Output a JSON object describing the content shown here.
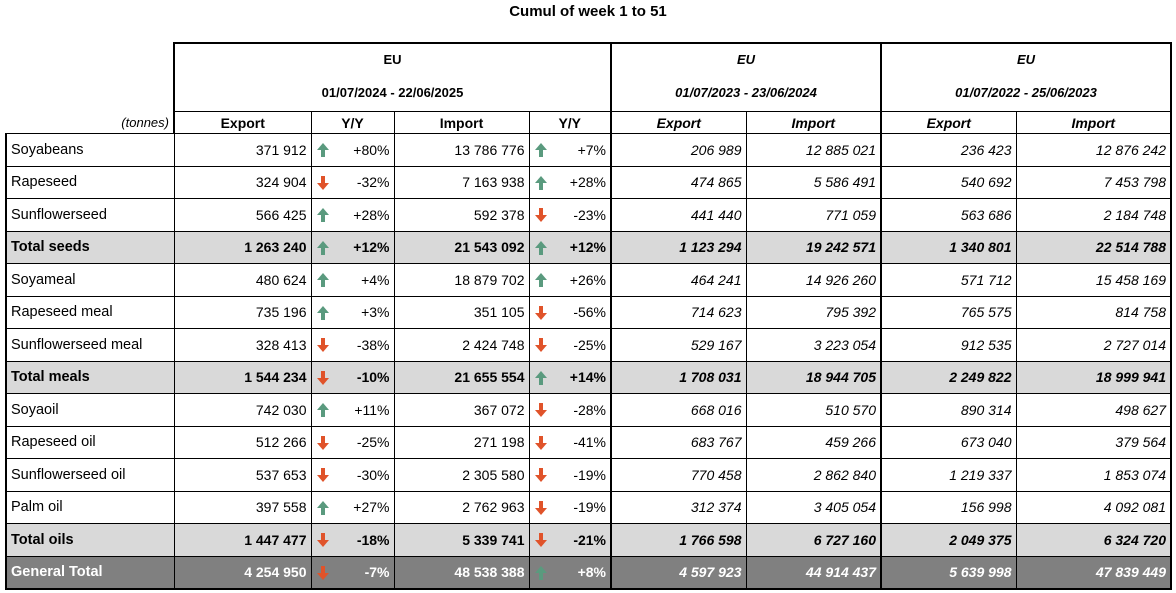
{
  "title": "Cumul of week 1 to 51",
  "units": "(tonnes)",
  "groups": [
    {
      "region": "EU",
      "period": "01/07/2024 - 22/06/2025"
    },
    {
      "region": "EU",
      "period": "01/07/2023 - 23/06/2024"
    },
    {
      "region": "EU",
      "period": "01/07/2022 - 25/06/2023"
    }
  ],
  "columns": {
    "export": "Export",
    "yy": "Y/Y",
    "import": "Import"
  },
  "colors": {
    "up": "#5a9a7e",
    "down": "#e0532a",
    "total_bg": "#d9d9d9",
    "general_bg": "#808080"
  },
  "rows": [
    {
      "label": "Soyabeans",
      "type": "item",
      "exp": "371 912",
      "exp_dir": "up",
      "exp_yy": "+80%",
      "imp": "13 786 776",
      "imp_dir": "up",
      "imp_yy": "+7%",
      "exp2": "206 989",
      "imp2": "12 885 021",
      "exp3": "236 423",
      "imp3": "12 876 242"
    },
    {
      "label": "Rapeseed",
      "type": "item",
      "exp": "324 904",
      "exp_dir": "down",
      "exp_yy": "-32%",
      "imp": "7 163 938",
      "imp_dir": "up",
      "imp_yy": "+28%",
      "exp2": "474 865",
      "imp2": "5 586 491",
      "exp3": "540 692",
      "imp3": "7 453 798"
    },
    {
      "label": "Sunflowerseed",
      "type": "item",
      "exp": "566 425",
      "exp_dir": "up",
      "exp_yy": "+28%",
      "imp": "592 378",
      "imp_dir": "down",
      "imp_yy": "-23%",
      "exp2": "441 440",
      "imp2": "771 059",
      "exp3": "563 686",
      "imp3": "2 184 748"
    },
    {
      "label": "Total seeds",
      "type": "total",
      "exp": "1 263 240",
      "exp_dir": "up",
      "exp_yy": "+12%",
      "imp": "21 543 092",
      "imp_dir": "up",
      "imp_yy": "+12%",
      "exp2": "1 123 294",
      "imp2": "19 242 571",
      "exp3": "1 340 801",
      "imp3": "22 514 788"
    },
    {
      "label": "Soyameal",
      "type": "item",
      "exp": "480 624",
      "exp_dir": "up",
      "exp_yy": "+4%",
      "imp": "18 879 702",
      "imp_dir": "up",
      "imp_yy": "+26%",
      "exp2": "464 241",
      "imp2": "14 926 260",
      "exp3": "571 712",
      "imp3": "15 458 169"
    },
    {
      "label": "Rapeseed meal",
      "type": "item",
      "exp": "735 196",
      "exp_dir": "up",
      "exp_yy": "+3%",
      "imp": "351 105",
      "imp_dir": "down",
      "imp_yy": "-56%",
      "exp2": "714 623",
      "imp2": "795 392",
      "exp3": "765 575",
      "imp3": "814 758"
    },
    {
      "label": "Sunflowerseed meal",
      "type": "item",
      "exp": "328 413",
      "exp_dir": "down",
      "exp_yy": "-38%",
      "imp": "2 424 748",
      "imp_dir": "down",
      "imp_yy": "-25%",
      "exp2": "529 167",
      "imp2": "3 223 054",
      "exp3": "912 535",
      "imp3": "2 727 014"
    },
    {
      "label": "Total meals",
      "type": "total",
      "exp": "1 544 234",
      "exp_dir": "down",
      "exp_yy": "-10%",
      "imp": "21 655 554",
      "imp_dir": "up",
      "imp_yy": "+14%",
      "exp2": "1 708 031",
      "imp2": "18 944 705",
      "exp3": "2 249 822",
      "imp3": "18 999 941"
    },
    {
      "label": "Soyaoil",
      "type": "item",
      "exp": "742 030",
      "exp_dir": "up",
      "exp_yy": "+11%",
      "imp": "367 072",
      "imp_dir": "down",
      "imp_yy": "-28%",
      "exp2": "668 016",
      "imp2": "510 570",
      "exp3": "890 314",
      "imp3": "498 627"
    },
    {
      "label": "Rapeseed oil",
      "type": "item",
      "exp": "512 266",
      "exp_dir": "down",
      "exp_yy": "-25%",
      "imp": "271 198",
      "imp_dir": "down",
      "imp_yy": "-41%",
      "exp2": "683 767",
      "imp2": "459 266",
      "exp3": "673 040",
      "imp3": "379 564"
    },
    {
      "label": "Sunflowerseed oil",
      "type": "item",
      "exp": "537 653",
      "exp_dir": "down",
      "exp_yy": "-30%",
      "imp": "2 305 580",
      "imp_dir": "down",
      "imp_yy": "-19%",
      "exp2": "770 458",
      "imp2": "2 862 840",
      "exp3": "1 219 337",
      "imp3": "1 853 074"
    },
    {
      "label": "Palm oil",
      "type": "item",
      "exp": "397 558",
      "exp_dir": "up",
      "exp_yy": "+27%",
      "imp": "2 762 963",
      "imp_dir": "down",
      "imp_yy": "-19%",
      "exp2": "312 374",
      "imp2": "3 405 054",
      "exp3": "156 998",
      "imp3": "4 092 081"
    },
    {
      "label": "Total oils",
      "type": "total",
      "exp": "1 447 477",
      "exp_dir": "down",
      "exp_yy": "-18%",
      "imp": "5 339 741",
      "imp_dir": "down",
      "imp_yy": "-21%",
      "exp2": "1 766 598",
      "imp2": "6 727 160",
      "exp3": "2 049 375",
      "imp3": "6 324 720"
    },
    {
      "label": "General Total",
      "type": "general",
      "exp": "4 254 950",
      "exp_dir": "down",
      "exp_yy": "-7%",
      "imp": "48 538 388",
      "imp_dir": "up",
      "imp_yy": "+8%",
      "exp2": "4 597 923",
      "imp2": "44 914 437",
      "exp3": "5 639 998",
      "imp3": "47 839 449"
    }
  ]
}
